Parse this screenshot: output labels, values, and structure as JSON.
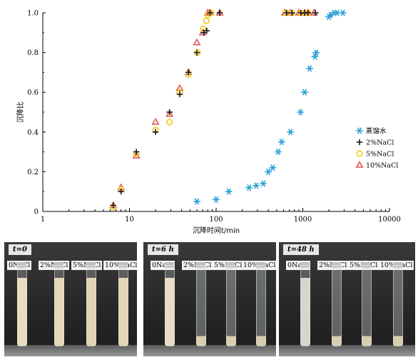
{
  "chart_data": {
    "type": "scatter",
    "xlabel": "沉降时间t/min",
    "ylabel": "沉降比",
    "xscale": "log",
    "xlim": [
      1,
      10000
    ],
    "ylim": [
      0,
      1.0
    ],
    "xticks": [
      1,
      10,
      100,
      1000,
      10000
    ],
    "yticks": [
      0,
      0.2,
      0.4,
      0.6,
      0.8,
      1.0
    ],
    "xtick_labels": [
      "1",
      "10",
      "100",
      "1000",
      "10000"
    ],
    "ytick_labels": [
      "0",
      "0.2",
      "0.4",
      "0.6",
      "0.8",
      "1.0"
    ],
    "legend_position": "right",
    "series": [
      {
        "name": "蒸馏水",
        "marker": "asterisk",
        "color": "#2a9fd8",
        "points": [
          [
            60,
            0.05
          ],
          [
            100,
            0.06
          ],
          [
            140,
            0.1
          ],
          [
            240,
            0.12
          ],
          [
            290,
            0.13
          ],
          [
            350,
            0.14
          ],
          [
            400,
            0.2
          ],
          [
            450,
            0.22
          ],
          [
            520,
            0.3
          ],
          [
            570,
            0.35
          ],
          [
            720,
            0.4
          ],
          [
            940,
            0.5
          ],
          [
            1050,
            0.6
          ],
          [
            1200,
            0.72
          ],
          [
            1380,
            0.78
          ],
          [
            1430,
            0.8
          ],
          [
            2000,
            0.98
          ],
          [
            2100,
            0.99
          ],
          [
            2300,
            1.0
          ],
          [
            2500,
            1.0
          ],
          [
            2900,
            1.0
          ]
        ]
      },
      {
        "name": "2%NaCl",
        "marker": "plus",
        "color": "#1a1a1a",
        "points": [
          [
            6.5,
            0.03
          ],
          [
            8,
            0.1
          ],
          [
            12,
            0.3
          ],
          [
            20,
            0.4
          ],
          [
            29,
            0.5
          ],
          [
            38,
            0.59
          ],
          [
            48,
            0.7
          ],
          [
            60,
            0.8
          ],
          [
            72,
            0.9
          ],
          [
            78,
            0.91
          ],
          [
            85,
            1.0
          ],
          [
            110,
            1.0
          ],
          [
            650,
            1.0
          ],
          [
            750,
            1.0
          ],
          [
            950,
            1.0
          ],
          [
            1050,
            1.0
          ],
          [
            1150,
            1.0
          ],
          [
            1400,
            1.0
          ]
        ]
      },
      {
        "name": "5%NaCl",
        "marker": "circle",
        "color": "#f0c800",
        "points": [
          [
            6.5,
            0.02
          ],
          [
            8,
            0.11
          ],
          [
            12,
            0.29
          ],
          [
            20,
            0.41
          ],
          [
            29,
            0.45
          ],
          [
            38,
            0.6
          ],
          [
            48,
            0.69
          ],
          [
            61,
            0.8
          ],
          [
            71,
            0.92
          ],
          [
            77,
            0.96
          ],
          [
            80,
            0.99
          ],
          [
            88,
            1.0
          ],
          [
            640,
            1.0
          ],
          [
            750,
            1.0
          ],
          [
            950,
            1.0
          ],
          [
            1150,
            1.0
          ]
        ]
      },
      {
        "name": "10%NaCl",
        "marker": "triangle",
        "color": "#e05050",
        "points": [
          [
            6.5,
            0.03
          ],
          [
            8,
            0.12
          ],
          [
            12,
            0.28
          ],
          [
            20,
            0.45
          ],
          [
            29,
            0.49
          ],
          [
            38,
            0.62
          ],
          [
            48,
            0.7
          ],
          [
            60,
            0.85
          ],
          [
            70,
            0.9
          ],
          [
            80,
            1.0
          ],
          [
            85,
            1.0
          ],
          [
            110,
            1.0
          ],
          [
            620,
            1.0
          ],
          [
            720,
            1.0
          ],
          [
            900,
            1.0
          ],
          [
            1050,
            1.0
          ],
          [
            1150,
            1.0
          ],
          [
            1350,
            1.0
          ]
        ]
      }
    ]
  },
  "photos": [
    {
      "time_label": "t=0",
      "tube_labels": [
        "0NaCl",
        "2%NaCl",
        "5%NaCl",
        "10%NaCl"
      ]
    },
    {
      "time_label": "t=6 h",
      "tube_labels": [
        "0NaCl",
        "2%NaCl",
        "5%NaCl",
        "10%NaCl"
      ]
    },
    {
      "time_label": "t=48 h",
      "tube_labels": [
        "0NaCl",
        "2%NaCl",
        "5%NaCl",
        "10%NaCl"
      ]
    }
  ]
}
